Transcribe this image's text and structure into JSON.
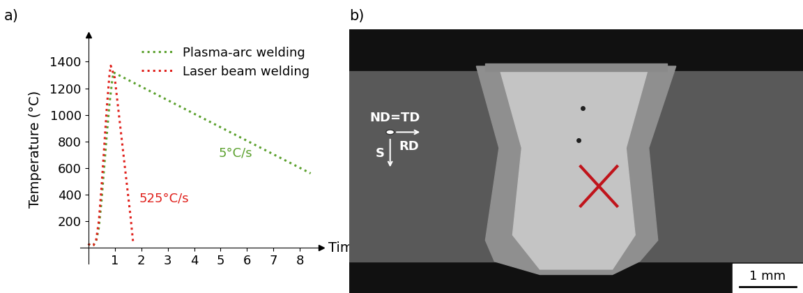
{
  "panel_labels": [
    "a)",
    "b)"
  ],
  "chart_data": {
    "type": "line",
    "x_label": "Time (s)",
    "y_label": "Temperature (°C)",
    "xlim": [
      -0.3,
      8.8
    ],
    "ylim": [
      -120,
      1600
    ],
    "xticks": [
      1,
      2,
      3,
      4,
      5,
      6,
      7,
      8
    ],
    "yticks": [
      200,
      400,
      600,
      800,
      1000,
      1200,
      1400
    ],
    "grid": false,
    "legend": "upper right",
    "series": [
      {
        "name": "Plasma-arc welding",
        "color": "#5aa02c",
        "line_style": "dotted",
        "rate_label": "5°C/s",
        "x": [
          0,
          0.1,
          0.2,
          0.3,
          0.4,
          0.5,
          0.6,
          0.7,
          0.8,
          0.9,
          0.95,
          8.4
        ],
        "values": [
          30,
          15,
          20,
          50,
          150,
          350,
          600,
          850,
          1080,
          1250,
          1320,
          560
        ]
      },
      {
        "name": "Laser beam welding",
        "color": "#e0201b",
        "line_style": "dotted",
        "rate_label": "525°C/s",
        "x": [
          0,
          0.1,
          0.2,
          0.3,
          0.4,
          0.5,
          0.6,
          0.7,
          0.8,
          0.85,
          1.0,
          1.2,
          1.4,
          1.6,
          1.7
        ],
        "values": [
          30,
          15,
          20,
          60,
          200,
          450,
          750,
          1050,
          1300,
          1370,
          1280,
          930,
          580,
          230,
          30
        ]
      }
    ]
  },
  "micrograph": {
    "orientation_labels": [
      "ND=TD",
      "RD",
      "S"
    ],
    "scale_bar": "1 mm"
  }
}
